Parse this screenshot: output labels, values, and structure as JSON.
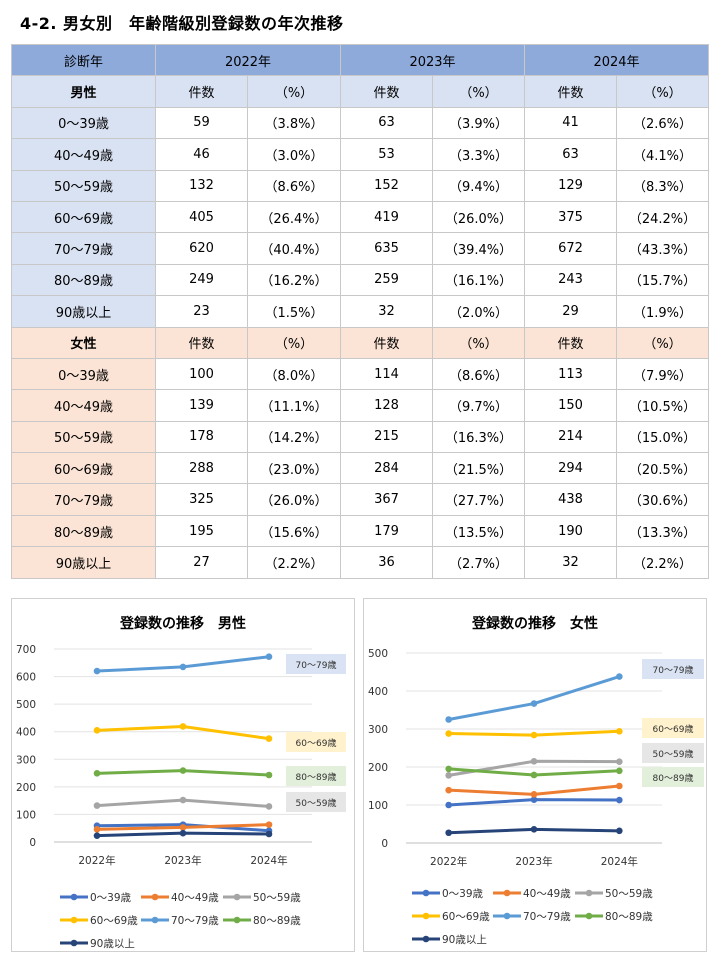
{
  "title": "4-2. 男女別　年齢階級別登録数の年次推移",
  "table": {
    "corner": "診断年",
    "years": [
      "2022年",
      "2023年",
      "2024年"
    ],
    "count_label": "件数",
    "pct_label": "（%）",
    "male_label": "男性",
    "female_label": "女性",
    "male_rows": [
      {
        "age": "0～39歳",
        "vals": [
          "59",
          "（3.8%）",
          "63",
          "（3.9%）",
          "41",
          "（2.6%）"
        ]
      },
      {
        "age": "40～49歳",
        "vals": [
          "46",
          "（3.0%）",
          "53",
          "（3.3%）",
          "63",
          "（4.1%）"
        ]
      },
      {
        "age": "50～59歳",
        "vals": [
          "132",
          "（8.6%）",
          "152",
          "（9.4%）",
          "129",
          "（8.3%）"
        ]
      },
      {
        "age": "60～69歳",
        "vals": [
          "405",
          "（26.4%）",
          "419",
          "（26.0%）",
          "375",
          "（24.2%）"
        ]
      },
      {
        "age": "70～79歳",
        "vals": [
          "620",
          "（40.4%）",
          "635",
          "（39.4%）",
          "672",
          "（43.3%）"
        ]
      },
      {
        "age": "80～89歳",
        "vals": [
          "249",
          "（16.2%）",
          "259",
          "（16.1%）",
          "243",
          "（15.7%）"
        ]
      },
      {
        "age": "90歳以上",
        "vals": [
          "23",
          "（1.5%）",
          "32",
          "（2.0%）",
          "29",
          "（1.9%）"
        ]
      }
    ],
    "female_rows": [
      {
        "age": "0～39歳",
        "vals": [
          "100",
          "（8.0%）",
          "114",
          "（8.6%）",
          "113",
          "（7.9%）"
        ]
      },
      {
        "age": "40～49歳",
        "vals": [
          "139",
          "（11.1%）",
          "128",
          "（9.7%）",
          "150",
          "（10.5%）"
        ]
      },
      {
        "age": "50～59歳",
        "vals": [
          "178",
          "（14.2%）",
          "215",
          "（16.3%）",
          "214",
          "（15.0%）"
        ]
      },
      {
        "age": "60～69歳",
        "vals": [
          "288",
          "（23.0%）",
          "284",
          "（21.5%）",
          "294",
          "（20.5%）"
        ]
      },
      {
        "age": "70～79歳",
        "vals": [
          "325",
          "（26.0%）",
          "367",
          "（27.7%）",
          "438",
          "（30.6%）"
        ]
      },
      {
        "age": "80～89歳",
        "vals": [
          "195",
          "（15.6%）",
          "179",
          "（13.5%）",
          "190",
          "（13.3%）"
        ]
      },
      {
        "age": "90歳以上",
        "vals": [
          "27",
          "（2.2%）",
          "36",
          "（2.7%）",
          "32",
          "（2.2%）"
        ]
      }
    ]
  },
  "chart_data": [
    {
      "type": "line",
      "title": "登録数の推移　男性",
      "categories": [
        "2022年",
        "2023年",
        "2024年"
      ],
      "ylim": [
        0,
        700
      ],
      "yticks": [
        0,
        100,
        200,
        300,
        400,
        500,
        600,
        700
      ],
      "series": [
        {
          "name": "0～39歳",
          "values": [
            59,
            63,
            41
          ],
          "color": "#4472c4"
        },
        {
          "name": "40～49歳",
          "values": [
            46,
            53,
            63
          ],
          "color": "#ed7d31"
        },
        {
          "name": "50～59歳",
          "values": [
            132,
            152,
            129
          ],
          "color": "#a5a5a5"
        },
        {
          "name": "60～69歳",
          "values": [
            405,
            419,
            375
          ],
          "color": "#ffc000"
        },
        {
          "name": "70～79歳",
          "values": [
            620,
            635,
            672
          ],
          "color": "#5b9bd5"
        },
        {
          "name": "80～89歳",
          "values": [
            249,
            259,
            243
          ],
          "color": "#70ad47"
        },
        {
          "name": "90歳以上",
          "values": [
            23,
            32,
            29
          ],
          "color": "#264478"
        }
      ],
      "callouts": [
        {
          "text": "70～79歳",
          "bg": "#dae3f3"
        },
        {
          "text": "60～69歳",
          "bg": "#fff2cc"
        },
        {
          "text": "80～89歳",
          "bg": "#e2efda"
        },
        {
          "text": "50～59歳",
          "bg": "#e7e6e6"
        }
      ]
    },
    {
      "type": "line",
      "title": "登録数の推移　女性",
      "categories": [
        "2022年",
        "2023年",
        "2024年"
      ],
      "ylim": [
        0,
        500
      ],
      "yticks": [
        0,
        100,
        200,
        300,
        400,
        500
      ],
      "series": [
        {
          "name": "0～39歳",
          "values": [
            100,
            114,
            113
          ],
          "color": "#4472c4"
        },
        {
          "name": "40～49歳",
          "values": [
            139,
            128,
            150
          ],
          "color": "#ed7d31"
        },
        {
          "name": "50～59歳",
          "values": [
            178,
            215,
            214
          ],
          "color": "#a5a5a5"
        },
        {
          "name": "60～69歳",
          "values": [
            288,
            284,
            294
          ],
          "color": "#ffc000"
        },
        {
          "name": "70～79歳",
          "values": [
            325,
            367,
            438
          ],
          "color": "#5b9bd5"
        },
        {
          "name": "80～89歳",
          "values": [
            195,
            179,
            190
          ],
          "color": "#70ad47"
        },
        {
          "name": "90歳以上",
          "values": [
            27,
            36,
            32
          ],
          "color": "#264478"
        }
      ],
      "callouts": [
        {
          "text": "70～79歳",
          "bg": "#dae3f3"
        },
        {
          "text": "60～69歳",
          "bg": "#fff2cc"
        },
        {
          "text": "50～59歳",
          "bg": "#e7e6e6"
        },
        {
          "text": "80～89歳",
          "bg": "#e2efda"
        }
      ]
    }
  ]
}
